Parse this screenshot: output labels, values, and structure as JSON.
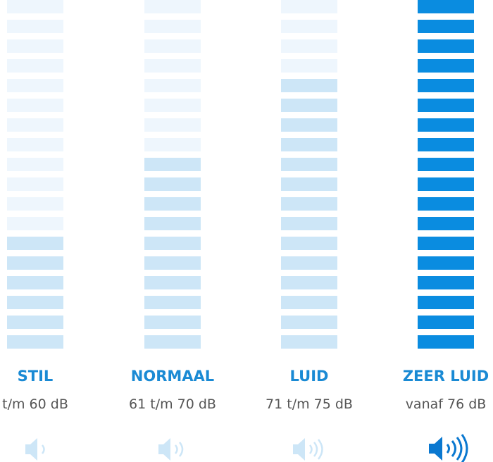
{
  "columns": [
    {
      "title": "STIL",
      "range": "t/m 60 dB",
      "filled_segments": 6
    },
    {
      "title": "NORMAAL",
      "range": "61 t/m 70 dB",
      "filled_segments": 10
    },
    {
      "title": "LUID",
      "range": "71 t/m 75 dB",
      "filled_segments": 14
    },
    {
      "title": "ZEER LUID",
      "range": "vanaf 76 dB",
      "filled_segments": 18
    }
  ]
}
